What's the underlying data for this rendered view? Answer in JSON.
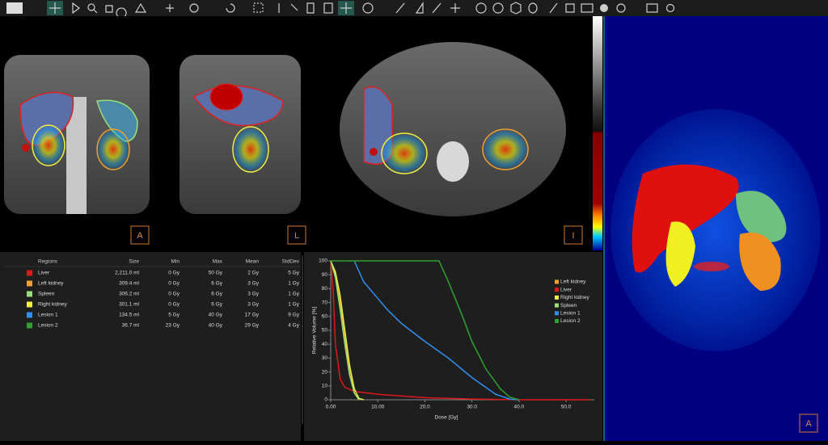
{
  "viewports": [
    "A",
    "L",
    "I",
    "A"
  ],
  "table": {
    "headers": [
      "Regions",
      "Size",
      "Min",
      "Max",
      "Mean",
      "StdDev"
    ],
    "rows": [
      {
        "color": "#e01818",
        "cells": [
          "Liver",
          "2,211.0 ml",
          "0 Gy",
          "50 Gy",
          "2 Gy",
          "5 Gy"
        ]
      },
      {
        "color": "#f0a030",
        "cells": [
          "Left kidney",
          "309.4 ml",
          "0 Gy",
          "6 Gy",
          "3 Gy",
          "1 Gy"
        ]
      },
      {
        "color": "#98e078",
        "cells": [
          "Spleen",
          "306.2 ml",
          "0 Gy",
          "6 Gy",
          "3 Gy",
          "1 Gy"
        ]
      },
      {
        "color": "#f0f040",
        "cells": [
          "Right kidney",
          "301.1 ml",
          "0 Gy",
          "6 Gy",
          "3 Gy",
          "1 Gy"
        ]
      },
      {
        "color": "#3090f0",
        "cells": [
          "Lesion 1",
          "134.5 ml",
          "5 Gy",
          "40 Gy",
          "17 Gy",
          "9 Gy"
        ]
      },
      {
        "color": "#30a030",
        "cells": [
          "Lesion 2",
          "36.7 ml",
          "23 Gy",
          "40 Gy",
          "29 Gy",
          "4 Gy"
        ]
      }
    ]
  },
  "chart_data": {
    "type": "line",
    "x_label": "Dose [Gy]",
    "y_label": "Relative Volume [%]",
    "xlim": [
      0,
      56
    ],
    "ylim": [
      0,
      100
    ],
    "xticks": [
      {
        "value": 0,
        "label": "0.00"
      },
      {
        "value": 10,
        "label": "10.00"
      },
      {
        "value": 20,
        "label": "20.0"
      },
      {
        "value": 30,
        "label": "30.0"
      },
      {
        "value": 40,
        "label": "40.0"
      },
      {
        "value": 50,
        "label": "50.0"
      }
    ],
    "yticks": [
      0,
      10,
      20,
      30,
      40,
      50,
      60,
      70,
      80,
      90,
      100
    ],
    "series": [
      {
        "name": "Left kidney",
        "color": "#f0a030",
        "x": [
          0,
          1,
          2,
          3,
          4,
          5,
          6
        ],
        "values": [
          100,
          90,
          70,
          45,
          20,
          5,
          0
        ]
      },
      {
        "name": "Liver",
        "color": "#e01818",
        "x": [
          0,
          0.5,
          1,
          2,
          3,
          5,
          10,
          20,
          30,
          40,
          55
        ],
        "values": [
          100,
          80,
          40,
          15,
          9,
          6,
          4,
          1.5,
          0.5,
          0,
          0
        ]
      },
      {
        "name": "Right kidney",
        "color": "#f0f040",
        "x": [
          0,
          1,
          2,
          3,
          4,
          5,
          6,
          7
        ],
        "values": [
          100,
          92,
          75,
          50,
          25,
          8,
          1,
          0
        ]
      },
      {
        "name": "Spleen",
        "color": "#98e078",
        "x": [
          0,
          1,
          2,
          3,
          4,
          5,
          6
        ],
        "values": [
          100,
          88,
          65,
          40,
          18,
          5,
          0
        ]
      },
      {
        "name": "Lesion 1",
        "color": "#3090f0",
        "x": [
          5,
          7,
          10,
          12,
          15,
          20,
          25,
          30,
          35,
          38,
          40
        ],
        "values": [
          100,
          85,
          73,
          65,
          55,
          42,
          30,
          16,
          4,
          0.5,
          0
        ]
      },
      {
        "name": "Lesion 2",
        "color": "#30a030",
        "x": [
          0,
          23,
          25,
          28,
          30,
          33,
          36,
          38,
          40
        ],
        "values": [
          100,
          100,
          85,
          60,
          42,
          22,
          8,
          2,
          0
        ]
      }
    ]
  }
}
